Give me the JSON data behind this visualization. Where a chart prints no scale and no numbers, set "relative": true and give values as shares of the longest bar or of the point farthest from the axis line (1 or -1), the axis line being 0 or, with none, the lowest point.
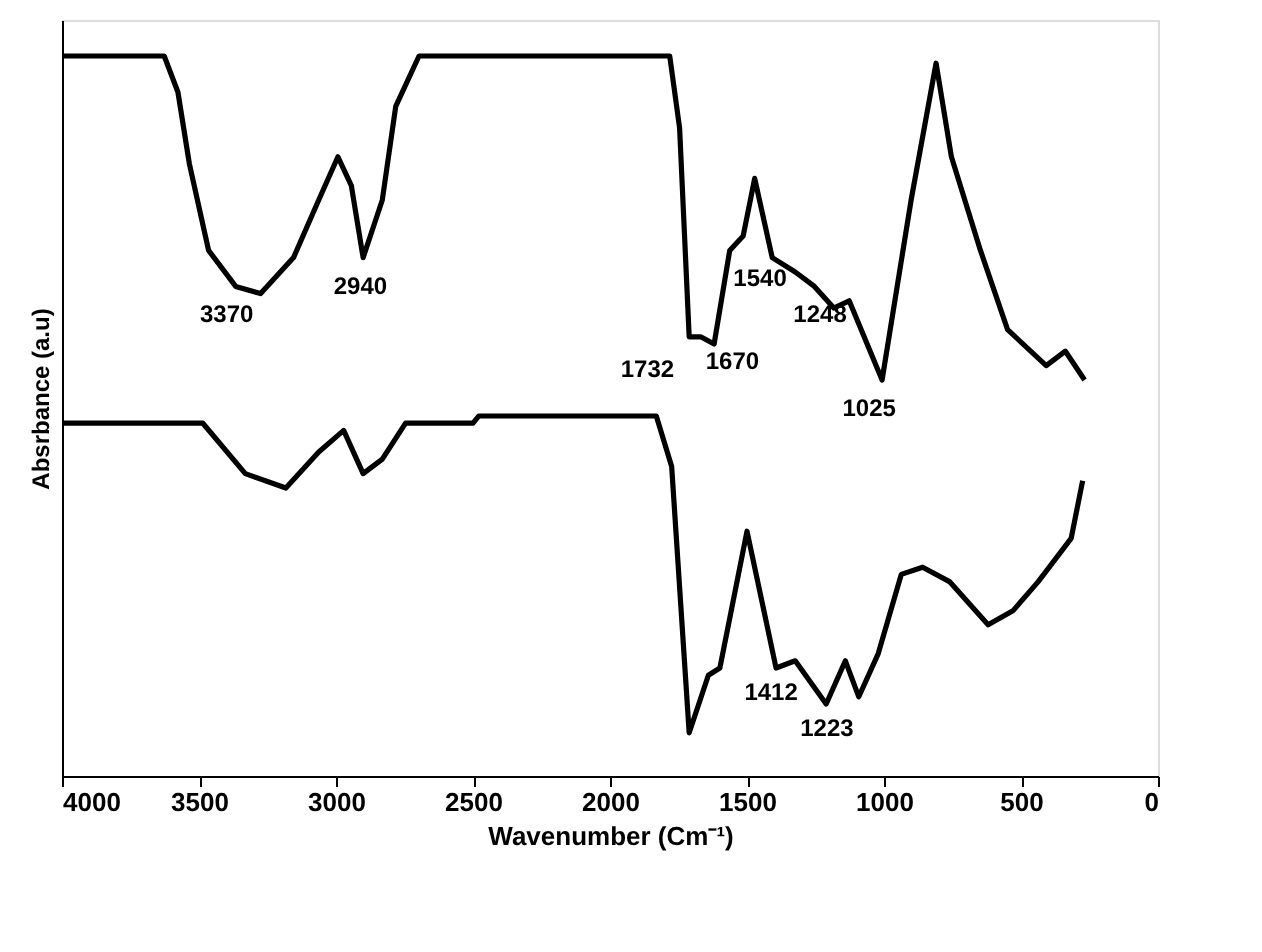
{
  "chart_data": {
    "type": "line",
    "relative": true,
    "xlabel": "Wavenumber (Cm⁻¹)",
    "ylabel": "Absrbance (a.u)",
    "xlim": [
      4000,
      0
    ],
    "xticks": [
      0,
      500,
      1000,
      1500,
      2000,
      2500,
      3000,
      3500,
      4000
    ],
    "grid": false,
    "legend": false,
    "tick_labels": "x",
    "marker": "none",
    "line_style": "solid",
    "series": [
      {
        "color": "#000000",
        "x": [
          4000,
          3627,
          3577,
          3535,
          3465,
          3366,
          3275,
          3155,
          3063,
          2993,
          2944,
          2901,
          2831,
          2782,
          2697,
          1782,
          1746,
          1711,
          1669,
          1620,
          1563,
          1514,
          1472,
          1408,
          1324,
          1254,
          1183,
          1127,
          1007,
          901,
          810,
          754,
          648,
          549,
          408,
          338,
          268
        ],
        "values": [
          1.0,
          1.0,
          0.95,
          0.85,
          0.73,
          0.68,
          0.67,
          0.72,
          0.8,
          0.86,
          0.82,
          0.72,
          0.8,
          0.93,
          1.0,
          1.0,
          0.9,
          0.61,
          0.61,
          0.6,
          0.73,
          0.75,
          0.83,
          0.72,
          0.7,
          0.68,
          0.65,
          0.66,
          0.55,
          0.8,
          0.99,
          0.86,
          0.73,
          0.62,
          0.57,
          0.59,
          0.55
        ]
      },
      {
        "color": "#000000",
        "x": [
          4000,
          3486,
          3331,
          3183,
          3063,
          2972,
          2901,
          2831,
          2746,
          2500,
          2479,
          1831,
          1775,
          1711,
          1641,
          1599,
          1500,
          1394,
          1324,
          1211,
          1141,
          1092,
          1021,
          937,
          859,
          761,
          620,
          528,
          437,
          317,
          275
        ],
        "values": [
          0.49,
          0.49,
          0.42,
          0.4,
          0.45,
          0.48,
          0.42,
          0.44,
          0.49,
          0.49,
          0.5,
          0.5,
          0.43,
          0.06,
          0.14,
          0.15,
          0.34,
          0.15,
          0.16,
          0.1,
          0.16,
          0.11,
          0.17,
          0.28,
          0.29,
          0.27,
          0.21,
          0.23,
          0.27,
          0.33,
          0.41
        ]
      }
    ],
    "annotations": [
      {
        "text": "3370",
        "x": 3370,
        "y": 0.68
      },
      {
        "text": "2940",
        "x": 2940,
        "y": 0.72
      },
      {
        "text": "1732",
        "x": 1732,
        "y": 0.61
      },
      {
        "text": "1670",
        "x": 1670,
        "y": 0.61
      },
      {
        "text": "1540",
        "x": 1540,
        "y": 0.73
      },
      {
        "text": "1248",
        "x": 1248,
        "y": 0.68
      },
      {
        "text": "1025",
        "x": 1025,
        "y": 0.55
      },
      {
        "text": "1412",
        "x": 1412,
        "y": 0.15
      },
      {
        "text": "1223",
        "x": 1223,
        "y": 0.1
      }
    ]
  }
}
